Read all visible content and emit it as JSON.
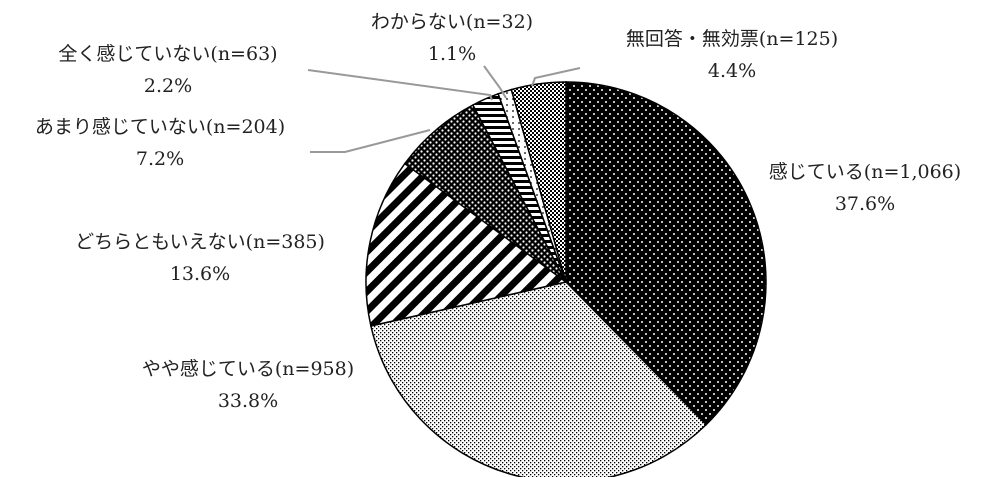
{
  "chart_data": {
    "type": "pie",
    "title": "",
    "start_angle_deg": 0,
    "direction": "clockwise",
    "slices": [
      {
        "name": "感じている",
        "n": "n=1,066",
        "label": "感じている(n=1,066)",
        "percent_label": "37.6%",
        "value": 37.6,
        "pattern": "dots-on-black"
      },
      {
        "name": "やや感じている",
        "n": "n=958",
        "label": "やや感じている(n=958)",
        "percent_label": "33.8%",
        "value": 33.8,
        "pattern": "fine-check"
      },
      {
        "name": "どちらともいえない",
        "n": "n=385",
        "label": "どちらともいえない(n=385)",
        "percent_label": "13.6%",
        "value": 13.6,
        "pattern": "wide-diagonal-stripes"
      },
      {
        "name": "あまり感じていない",
        "n": "n=204",
        "label": "あまり感じていない(n=204)",
        "percent_label": "7.2%",
        "value": 7.2,
        "pattern": "white-dots-on-black"
      },
      {
        "name": "全く感じていない",
        "n": "n=63",
        "label": "全く感じていない(n=63)",
        "percent_label": "2.2%",
        "value": 2.2,
        "pattern": "horizontal-stripes"
      },
      {
        "name": "わからない",
        "n": "n=32",
        "label": "わからない(n=32)",
        "percent_label": "1.1%",
        "value": 1.1,
        "pattern": "sparse-dots"
      },
      {
        "name": "無回答・無効票",
        "n": "n=125",
        "label": "無回答・無効票(n=125)",
        "percent_label": "4.4%",
        "value": 4.4,
        "pattern": "checker"
      }
    ],
    "colors": {
      "fill_dark": "#000000",
      "fill_light": "#ffffff",
      "outline": "#000000",
      "leader": "#999999",
      "text": "#222222"
    }
  }
}
